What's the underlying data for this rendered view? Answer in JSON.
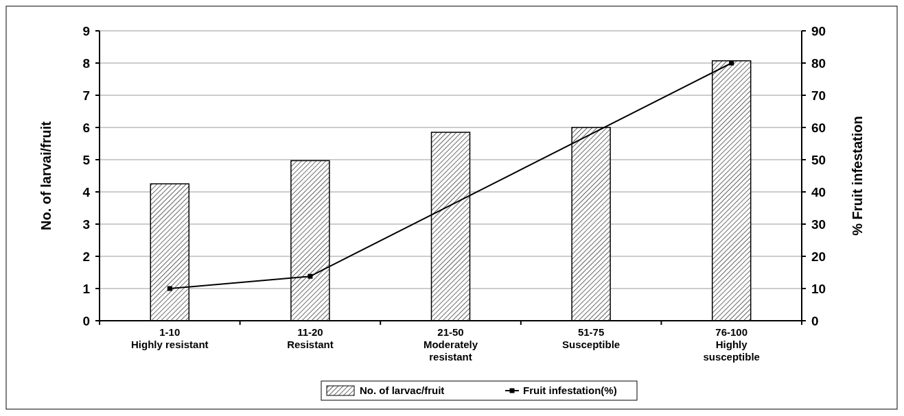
{
  "chart_data": {
    "type": "bar",
    "categories": [
      "1-10\nHighly resistant",
      "11-20\nResistant",
      "21-50\nModerately\nresistant",
      "51-75\nSusceptible",
      "76-100\nHighly\nsusceptible"
    ],
    "ylabel": "No. of larvai/fruit",
    "y2label": "% Fruit infestation",
    "ylim": [
      0,
      9
    ],
    "yticks": [
      0,
      1,
      2,
      3,
      4,
      5,
      6,
      7,
      8,
      9
    ],
    "y2lim": [
      0,
      90
    ],
    "y2ticks": [
      0,
      10,
      20,
      30,
      40,
      50,
      60,
      70,
      80,
      90
    ],
    "grid": "y",
    "legend": "bottom",
    "series": [
      {
        "name": "No. of larvac/fruit",
        "color": "#000000",
        "values": [
          4.25,
          4.97,
          5.85,
          6.0,
          8.07
        ]
      },
      {
        "name": "Fruit infestation(%)",
        "type": "line",
        "axis": "y2",
        "color": "#000000",
        "marker": "square",
        "values": [
          10,
          13.8,
          null,
          null,
          80
        ]
      }
    ]
  }
}
